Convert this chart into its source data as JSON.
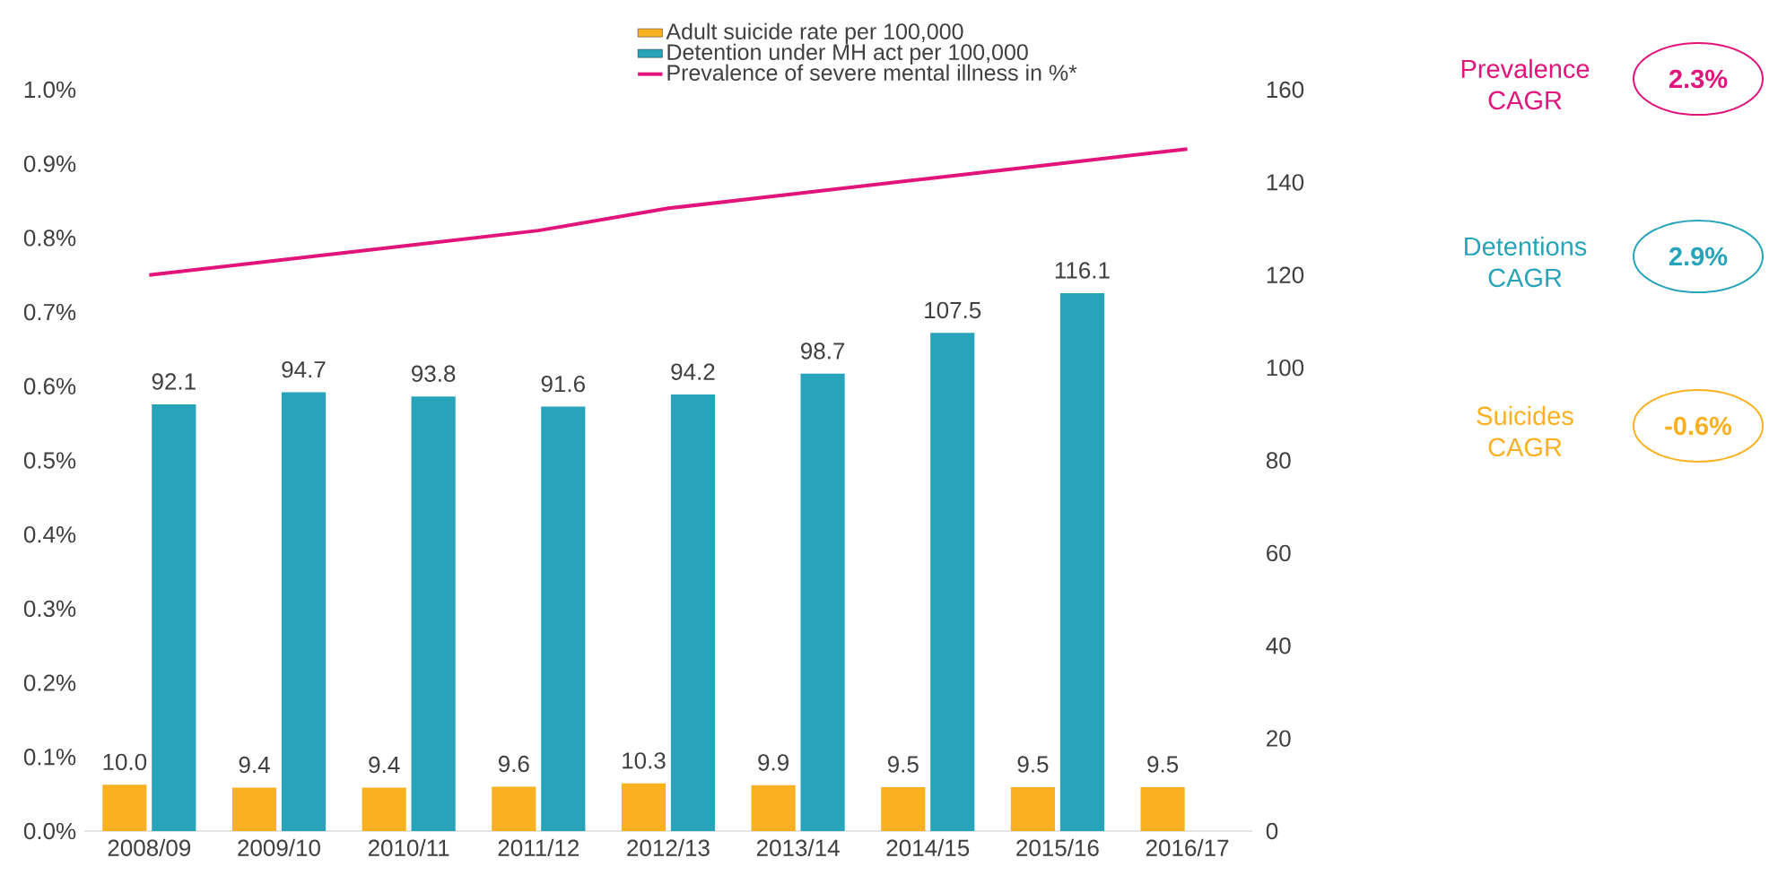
{
  "chart_data": {
    "type": "bar",
    "categories": [
      "2008/09",
      "2009/10",
      "2010/11",
      "2011/12",
      "2012/13",
      "2013/14",
      "2014/15",
      "2015/16",
      "2016/17"
    ],
    "series": [
      {
        "name": "Adult suicide rate per 100,000",
        "axis": "y2",
        "color": "#f9b122",
        "values": [
          10.0,
          9.4,
          9.4,
          9.6,
          10.3,
          9.9,
          9.5,
          9.5,
          9.5
        ],
        "value_labels": [
          "10.0",
          "9.4",
          "9.4",
          "9.6",
          "10.3",
          "9.9",
          "9.5",
          "9.5",
          "9.5"
        ]
      },
      {
        "name": "Detention under MH act per 100,000",
        "axis": "y2",
        "color": "#27a4b9",
        "values": [
          92.1,
          94.7,
          93.8,
          91.6,
          94.2,
          98.7,
          107.5,
          116.1,
          null
        ],
        "value_labels": [
          "92.1",
          "94.7",
          "93.8",
          "91.6",
          "94.2",
          "98.7",
          "107.5",
          "116.1",
          null
        ]
      },
      {
        "name": "Prevalence of severe mental illness in %*",
        "type": "line",
        "axis": "y",
        "color": "#e0147a",
        "values": [
          0.75,
          0.77,
          0.79,
          0.81,
          0.84,
          0.86,
          0.88,
          0.9,
          0.92
        ]
      }
    ],
    "ylim": [
      0,
      1.0
    ],
    "yticks": [
      {
        "value": 0,
        "label": "0.0%"
      },
      {
        "value": 0.1,
        "label": "0.1%"
      },
      {
        "value": 0.2,
        "label": "0.2%"
      },
      {
        "value": 0.3,
        "label": "0.3%"
      },
      {
        "value": 0.4,
        "label": "0.4%"
      },
      {
        "value": 0.5,
        "label": "0.5%"
      },
      {
        "value": 0.6,
        "label": "0.6%"
      },
      {
        "value": 0.7,
        "label": "0.7%"
      },
      {
        "value": 0.8,
        "label": "0.8%"
      },
      {
        "value": 0.9,
        "label": "0.9%"
      },
      {
        "value": 1.0,
        "label": "1.0%"
      }
    ],
    "y2lim": [
      0,
      160
    ],
    "y2ticks": [
      0,
      20,
      40,
      60,
      80,
      100,
      120,
      140,
      160
    ],
    "legend": "top",
    "marker": "none",
    "annotations": [
      "Prevalence CAGR",
      "2.3%",
      "Detentions CAGR",
      "2.9%",
      "Suicides CAGR",
      "-0.6%"
    ]
  }
}
